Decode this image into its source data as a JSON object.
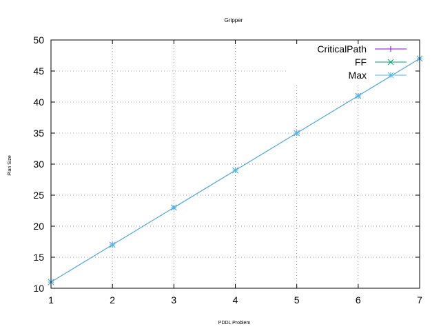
{
  "chart_data": {
    "type": "line",
    "title": "Gripper",
    "xlabel": "PDDL Problem",
    "ylabel": "Plan Size",
    "x": [
      1,
      2,
      3,
      4,
      5,
      6,
      7
    ],
    "xlim": [
      1,
      7
    ],
    "ylim": [
      10,
      50
    ],
    "xticks": [
      "1",
      "2",
      "3",
      "4",
      "5",
      "6",
      "7"
    ],
    "yticks": [
      "10",
      "15",
      "20",
      "25",
      "30",
      "35",
      "40",
      "45",
      "50"
    ],
    "grid": true,
    "legend_position": "top-right",
    "series": [
      {
        "name": "CriticalPath",
        "color": "#9400d3",
        "marker": "plus",
        "values": [
          11,
          17,
          23,
          29,
          35,
          41,
          47
        ]
      },
      {
        "name": "FF",
        "color": "#009e73",
        "marker": "cross",
        "values": [
          11,
          17,
          23,
          29,
          35,
          41,
          47
        ]
      },
      {
        "name": "Max",
        "color": "#56b4e9",
        "marker": "star",
        "values": [
          11,
          17,
          23,
          29,
          35,
          41,
          47
        ]
      }
    ]
  }
}
